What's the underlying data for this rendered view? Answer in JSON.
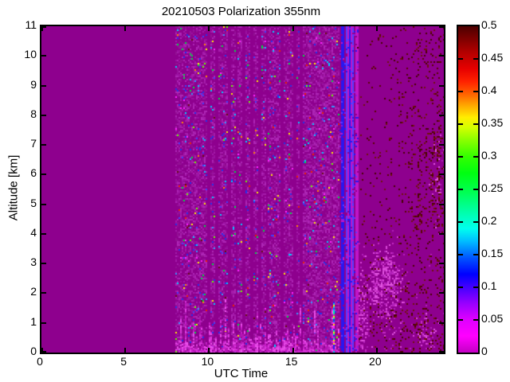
{
  "figure": {
    "background": "#ffffff",
    "border_color": "#000000"
  },
  "chart_data": {
    "type": "heatmap",
    "title": "20210503 Polarization 355nm",
    "xlabel": "UTC Time",
    "ylabel": "Altitude [km]",
    "xlim": [
      0,
      24
    ],
    "ylim": [
      0,
      11
    ],
    "zlim": [
      0,
      0.5
    ],
    "grid": false,
    "legend_position": "colorbar-right",
    "xticks": [
      0,
      5,
      10,
      15,
      20
    ],
    "xtick_labels": [
      "0",
      "5",
      "10",
      "15",
      "20"
    ],
    "yticks": [
      0,
      1,
      2,
      3,
      4,
      5,
      6,
      7,
      8,
      9,
      10,
      11
    ],
    "ytick_labels": [
      "0",
      "1",
      "2",
      "3",
      "4",
      "5",
      "6",
      "7",
      "8",
      "9",
      "10",
      "11"
    ],
    "colorbar_ticks": [
      {
        "v": 0.5,
        "label": "0.5"
      },
      {
        "v": 0.45,
        "label": "0.45"
      },
      {
        "v": 0.4,
        "label": "0.4"
      },
      {
        "v": 0.35,
        "label": "0.35"
      },
      {
        "v": 0.3,
        "label": "0.3"
      },
      {
        "v": 0.25,
        "label": "0.25"
      },
      {
        "v": 0.2,
        "label": "0.2"
      },
      {
        "v": 0.15,
        "label": "0.15"
      },
      {
        "v": 0.1,
        "label": "0.1"
      },
      {
        "v": 0.05,
        "label": "0.05"
      },
      {
        "v": 0,
        "label": "0"
      }
    ],
    "colormap_stops": [
      {
        "v": 0.0,
        "c": "#c400c4"
      },
      {
        "v": 0.025,
        "c": "#ff00ff"
      },
      {
        "v": 0.05,
        "c": "#e000ff"
      },
      {
        "v": 0.075,
        "c": "#9900ff"
      },
      {
        "v": 0.1,
        "c": "#4400ff"
      },
      {
        "v": 0.12,
        "c": "#0000ff"
      },
      {
        "v": 0.145,
        "c": "#0055ff"
      },
      {
        "v": 0.17,
        "c": "#00bbff"
      },
      {
        "v": 0.19,
        "c": "#00ffee"
      },
      {
        "v": 0.215,
        "c": "#00ffaa"
      },
      {
        "v": 0.245,
        "c": "#00ff55"
      },
      {
        "v": 0.275,
        "c": "#00ff11"
      },
      {
        "v": 0.3,
        "c": "#33ff00"
      },
      {
        "v": 0.325,
        "c": "#88ff00"
      },
      {
        "v": 0.345,
        "c": "#d4ff00"
      },
      {
        "v": 0.36,
        "c": "#ffee00"
      },
      {
        "v": 0.378,
        "c": "#ffaa00"
      },
      {
        "v": 0.395,
        "c": "#ff6600"
      },
      {
        "v": 0.415,
        "c": "#ff2200"
      },
      {
        "v": 0.435,
        "c": "#e60000"
      },
      {
        "v": 0.46,
        "c": "#b30000"
      },
      {
        "v": 0.48,
        "c": "#800000"
      },
      {
        "v": 0.5,
        "c": "#4d0000"
      }
    ],
    "background_value": 0,
    "background_color": "#8e008e",
    "regions": {
      "mottle": {
        "t0": 8.0,
        "t1": 18.85,
        "boost": [
          15.55,
          17.8
        ],
        "dark_bands": [
          9.9,
          10.4,
          11.2,
          11.6,
          12.0,
          12.5,
          12.95,
          13.4,
          14.3,
          15.1,
          15.45
        ],
        "light_colors": [
          "#9b11a1",
          "#a51bab",
          "#921094",
          "#ad26b5"
        ],
        "dot_colors": [
          [
            "#2233ee",
            30
          ],
          [
            "#4040ff",
            10
          ],
          [
            "#00ccff",
            12
          ],
          [
            "#3399ff",
            8
          ],
          [
            "#00dd44",
            10
          ],
          [
            "#66ff00",
            5
          ],
          [
            "#ffee00",
            7
          ],
          [
            "#ff8800",
            3
          ],
          [
            "#ee2200",
            5
          ],
          [
            "#661111",
            4
          ],
          [
            "#ff22ff",
            8
          ]
        ]
      },
      "bottom_streaks": {
        "t0": 8.0,
        "t1": 18.85,
        "default_max": 1.1,
        "tall_bands": [
          [
            8.0,
            9.6,
            2.0
          ],
          [
            10.4,
            11.6,
            2.2
          ],
          [
            12.2,
            13.6,
            2.0
          ],
          [
            15.3,
            16.3,
            2.4
          ]
        ],
        "colors": [
          "#cc22cc",
          "#e13ce1",
          "#f055f0",
          "#b816b8"
        ]
      },
      "color_column": {
        "t": 17.45,
        "top_km": 1.7,
        "colors": [
          "#00ccff",
          "#0077ff",
          "#2222ee",
          "#00ff99",
          "#ff22ff",
          "#cc22cc",
          "#ffee00"
        ]
      },
      "stripe": {
        "t0": 17.8,
        "t1": 18.85,
        "colors": [
          [
            "#2a16f0",
            34
          ],
          [
            "#5a3cff",
            12
          ],
          [
            "#8c18e6",
            12
          ],
          [
            "#c016c8",
            20
          ],
          [
            "#8e008e",
            22
          ]
        ]
      },
      "right_speckle": {
        "t0": 18.85,
        "t1": 24,
        "dot_colors": [
          "#5c0600",
          "#71120a",
          "#4a0202"
        ],
        "magenta": "#b81cc0"
      },
      "clumps": [
        {
          "t": 19.05,
          "a": 1.3,
          "rt": 0.18,
          "ra": 1.3,
          "d": 0.5
        },
        {
          "t": 19.35,
          "a": 0.8,
          "rt": 0.15,
          "ra": 0.8,
          "d": 0.45
        },
        {
          "t": 19.95,
          "a": 2.35,
          "rt": 0.45,
          "ra": 0.75,
          "d": 0.55
        },
        {
          "t": 20.55,
          "a": 2.6,
          "rt": 0.5,
          "ra": 0.8,
          "d": 0.6
        },
        {
          "t": 21.1,
          "a": 2.3,
          "rt": 0.35,
          "ra": 0.65,
          "d": 0.45
        },
        {
          "t": 20.5,
          "a": 1.4,
          "rt": 0.7,
          "ra": 0.9,
          "d": 0.18
        },
        {
          "t": 22.9,
          "a": 0.7,
          "rt": 0.5,
          "ra": 0.6,
          "d": 0.2
        },
        {
          "t": 23.6,
          "a": 5.8,
          "rt": 0.35,
          "ra": 1.2,
          "d": 0.14
        }
      ],
      "clump_colors": [
        "#c32ac3",
        "#d744d7",
        "#b01fb8",
        "#e055e0"
      ]
    }
  }
}
